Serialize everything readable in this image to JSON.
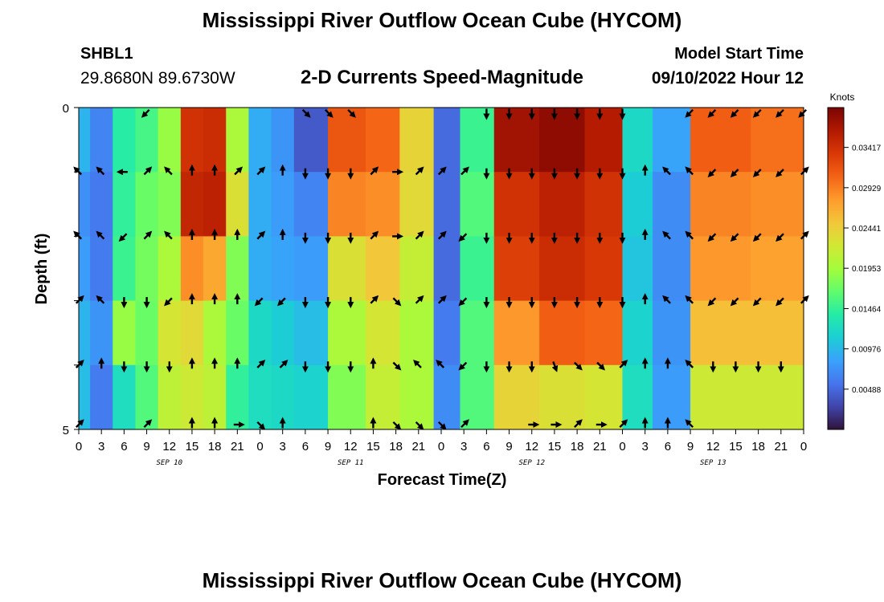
{
  "header": {
    "title": "Mississippi River Outflow Ocean Cube (HYCOM)",
    "station_name": "SHBL1",
    "station_coords": "29.8680N  89.6730W",
    "subtitle": "2-D Currents Speed-Magnitude",
    "model_start_label": "Model Start Time",
    "model_start_time": "09/10/2022 Hour 12"
  },
  "footer": {
    "title": "Mississippi River Outflow Ocean Cube (HYCOM)"
  },
  "chart_data": {
    "type": "heatmap",
    "xlabel": "Forecast Time(Z)",
    "ylabel": "Depth (ft)",
    "colorbar_label": "Knots",
    "colorbar_ticks": [
      "0.03417",
      "0.02929",
      "0.02441",
      "0.01953",
      "0.01464",
      "0.00976",
      "0.00488"
    ],
    "colorbar_range": [
      0,
      0.039
    ],
    "ylim": [
      0,
      5
    ],
    "y_tick_labels": [
      "0",
      "5"
    ],
    "x_range_hours": [
      0,
      96
    ],
    "x_tick_labels": [
      "0",
      "3",
      "6",
      "9",
      "12",
      "15",
      "18",
      "21",
      "0",
      "3",
      "6",
      "9",
      "12",
      "15",
      "18",
      "21",
      "0",
      "3",
      "6",
      "9",
      "12",
      "15",
      "18",
      "21",
      "0",
      "3",
      "6",
      "9",
      "12",
      "15",
      "18",
      "21",
      "0"
    ],
    "date_labels": [
      "SEP 10",
      "SEP 11",
      "SEP 12",
      "SEP 13"
    ],
    "depth_rows": 5,
    "colormap": [
      "#30123b",
      "#4145ab",
      "#4675ed",
      "#39a2fc",
      "#1bcfd4",
      "#24eca6",
      "#61fc6c",
      "#a4fc3b",
      "#d1e834",
      "#f3c63a",
      "#fe9b2d",
      "#f36315",
      "#d93806",
      "#b11901",
      "#7a0403"
    ],
    "speed_columns_knots": [
      [
        0.0095,
        0.0072,
        0.008,
        0.0095,
        0.01
      ],
      [
        0.0065,
        0.0058,
        0.006,
        0.0075,
        0.006
      ],
      [
        0.014,
        0.0145,
        0.015,
        0.019,
        0.0125
      ],
      [
        0.0155,
        0.017,
        0.0175,
        0.017,
        0.016
      ],
      [
        0.019,
        0.018,
        0.02,
        0.0225,
        0.021
      ],
      [
        0.034,
        0.035,
        0.0285,
        0.0235,
        0.022
      ],
      [
        0.0345,
        0.0355,
        0.027,
        0.02,
        0.021
      ],
      [
        0.02,
        0.023,
        0.018,
        0.017,
        0.0145
      ],
      [
        0.009,
        0.009,
        0.009,
        0.012,
        0.0125
      ],
      [
        0.0075,
        0.008,
        0.0085,
        0.011,
        0.012
      ],
      [
        0.004,
        0.0065,
        0.008,
        0.01,
        0.0115
      ],
      [
        0.0315,
        0.029,
        0.023,
        0.02,
        0.018
      ],
      [
        0.0305,
        0.0285,
        0.025,
        0.0225,
        0.0215
      ],
      [
        0.024,
        0.0235,
        0.0215,
        0.02,
        0.02
      ],
      [
        0.005,
        0.005,
        0.005,
        0.006,
        0.007
      ],
      [
        0.015,
        0.016,
        0.015,
        0.016,
        0.016
      ],
      [
        0.037,
        0.034,
        0.033,
        0.028,
        0.024
      ],
      [
        0.038,
        0.0355,
        0.0345,
        0.031,
        0.023
      ],
      [
        0.036,
        0.034,
        0.0335,
        0.0305,
        0.0225
      ],
      [
        0.012,
        0.011,
        0.0105,
        0.0115,
        0.0125
      ],
      [
        0.0085,
        0.007,
        0.007,
        0.0075,
        0.008
      ],
      [
        0.031,
        0.029,
        0.028,
        0.0255,
        0.022
      ],
      [
        0.03,
        0.0285,
        0.0275,
        0.0255,
        0.022
      ]
    ],
    "speed_column_hours": [
      0,
      3,
      6,
      9,
      12,
      15,
      18,
      21,
      24,
      27,
      30,
      36,
      40,
      45,
      49,
      52,
      58,
      64,
      70,
      74,
      78,
      84,
      94
    ],
    "vector_depth_rows": [
      0,
      1,
      2,
      3,
      4,
      5
    ],
    "vectors": [
      {
        "hour": 0,
        "dirs_deg": [
          null,
          315,
          315,
          45,
          45,
          45
        ]
      },
      {
        "hour": 3,
        "dirs_deg": [
          null,
          315,
          315,
          315,
          0,
          null
        ]
      },
      {
        "hour": 6,
        "dirs_deg": [
          null,
          270,
          225,
          180,
          180,
          null
        ]
      },
      {
        "hour": 9,
        "dirs_deg": [
          225,
          45,
          45,
          180,
          180,
          45
        ]
      },
      {
        "hour": 12,
        "dirs_deg": [
          null,
          315,
          315,
          225,
          180,
          null
        ]
      },
      {
        "hour": 15,
        "dirs_deg": [
          null,
          0,
          0,
          0,
          0,
          0
        ]
      },
      {
        "hour": 18,
        "dirs_deg": [
          null,
          0,
          0,
          0,
          0,
          0
        ]
      },
      {
        "hour": 21,
        "dirs_deg": [
          null,
          45,
          0,
          0,
          0,
          90
        ]
      },
      {
        "hour": 24,
        "dirs_deg": [
          null,
          45,
          45,
          225,
          45,
          135
        ]
      },
      {
        "hour": 27,
        "dirs_deg": [
          null,
          0,
          0,
          225,
          45,
          0
        ]
      },
      {
        "hour": 30,
        "dirs_deg": [
          135,
          180,
          180,
          180,
          180,
          null
        ]
      },
      {
        "hour": 33,
        "dirs_deg": [
          135,
          180,
          180,
          180,
          180,
          null
        ]
      },
      {
        "hour": 36,
        "dirs_deg": [
          135,
          180,
          180,
          180,
          180,
          null
        ]
      },
      {
        "hour": 39,
        "dirs_deg": [
          null,
          45,
          45,
          45,
          0,
          0
        ]
      },
      {
        "hour": 42,
        "dirs_deg": [
          null,
          90,
          90,
          135,
          135,
          135
        ]
      },
      {
        "hour": 45,
        "dirs_deg": [
          null,
          45,
          45,
          45,
          315,
          135
        ]
      },
      {
        "hour": 48,
        "dirs_deg": [
          null,
          45,
          45,
          45,
          315,
          135
        ]
      },
      {
        "hour": 51,
        "dirs_deg": [
          null,
          45,
          225,
          225,
          225,
          45
        ]
      },
      {
        "hour": 54,
        "dirs_deg": [
          180,
          180,
          180,
          180,
          180,
          null
        ]
      },
      {
        "hour": 57,
        "dirs_deg": [
          180,
          180,
          180,
          180,
          180,
          null
        ]
      },
      {
        "hour": 60,
        "dirs_deg": [
          180,
          180,
          180,
          180,
          180,
          90
        ]
      },
      {
        "hour": 63,
        "dirs_deg": [
          180,
          180,
          180,
          180,
          160,
          90
        ]
      },
      {
        "hour": 66,
        "dirs_deg": [
          180,
          180,
          180,
          180,
          135,
          45
        ]
      },
      {
        "hour": 69,
        "dirs_deg": [
          180,
          180,
          180,
          180,
          135,
          90
        ]
      },
      {
        "hour": 72,
        "dirs_deg": [
          180,
          180,
          180,
          180,
          45,
          45
        ]
      },
      {
        "hour": 75,
        "dirs_deg": [
          null,
          0,
          0,
          0,
          0,
          0
        ]
      },
      {
        "hour": 78,
        "dirs_deg": [
          null,
          315,
          315,
          315,
          0,
          0
        ]
      },
      {
        "hour": 81,
        "dirs_deg": [
          225,
          315,
          315,
          315,
          315,
          315
        ]
      },
      {
        "hour": 84,
        "dirs_deg": [
          225,
          225,
          225,
          225,
          180,
          null
        ]
      },
      {
        "hour": 87,
        "dirs_deg": [
          225,
          225,
          225,
          225,
          180,
          null
        ]
      },
      {
        "hour": 90,
        "dirs_deg": [
          225,
          225,
          225,
          225,
          180,
          null
        ]
      },
      {
        "hour": 93,
        "dirs_deg": [
          225,
          225,
          225,
          225,
          180,
          null
        ]
      },
      {
        "hour": 96,
        "dirs_deg": [
          225,
          45,
          45,
          45,
          null,
          null
        ]
      }
    ]
  }
}
